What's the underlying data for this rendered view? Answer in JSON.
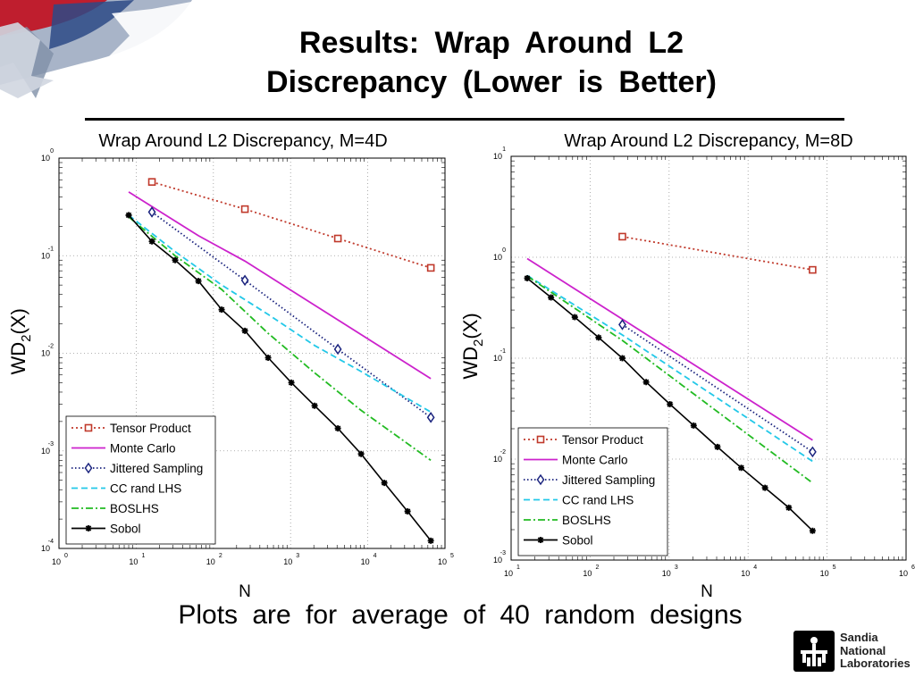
{
  "slide": {
    "title_line1": "Results:  Wrap  Around  L2",
    "title_line2": "Discrepancy  (Lower  is  Better)",
    "footer": "Plots  are  for  average  of  40  random  designs",
    "logo": {
      "line1": "Sandia",
      "line2": "National",
      "line3": "Laboratories"
    }
  },
  "chart_data": [
    {
      "type": "line",
      "title": "Wrap Around L2 Discrepancy, M=4D",
      "xlabel": "N",
      "ylabel": "WD2(X)",
      "xscale": "log",
      "yscale": "log",
      "xlim": [
        1,
        100000
      ],
      "ylim": [
        0.0001,
        1
      ],
      "grid": true,
      "legend_position": "bottom-left",
      "x_ticks": [
        {
          "base": "10",
          "exp": "0"
        },
        {
          "base": "10",
          "exp": "1"
        },
        {
          "base": "10",
          "exp": "2"
        },
        {
          "base": "10",
          "exp": "3"
        },
        {
          "base": "10",
          "exp": "4"
        },
        {
          "base": "10",
          "exp": "5"
        }
      ],
      "y_ticks": [
        {
          "base": "10",
          "exp": "-4"
        },
        {
          "base": "10",
          "exp": "-3"
        },
        {
          "base": "10",
          "exp": "-2"
        },
        {
          "base": "10",
          "exp": "-1"
        },
        {
          "base": "10",
          "exp": "0"
        }
      ],
      "series": [
        {
          "name": "Tensor Product",
          "color": "#c0392b",
          "dash": "2,3",
          "marker": "square",
          "x": [
            16,
            256,
            4096,
            65536
          ],
          "y": [
            0.57,
            0.3,
            0.15,
            0.075
          ]
        },
        {
          "name": "Monte Carlo",
          "color": "#cc22cc",
          "dash": "",
          "marker": "none",
          "x": [
            8,
            64,
            256,
            1024,
            4096,
            65536
          ],
          "y": [
            0.45,
            0.16,
            0.088,
            0.044,
            0.022,
            0.0055
          ]
        },
        {
          "name": "Jittered Sampling",
          "color": "#1a237e",
          "dash": "1.5,2.5",
          "marker": "diamond",
          "x": [
            16,
            256,
            4096,
            65536
          ],
          "y": [
            0.28,
            0.056,
            0.011,
            0.0022
          ]
        },
        {
          "name": "CC rand LHS",
          "color": "#22c8e8",
          "dash": "7,4",
          "marker": "none",
          "x": [
            8,
            32,
            128,
            512,
            2048,
            8192,
            65536
          ],
          "y": [
            0.26,
            0.11,
            0.05,
            0.025,
            0.012,
            0.0065,
            0.0025
          ]
        },
        {
          "name": "BOSLHS",
          "color": "#22bb22",
          "dash": "8,3,2,3",
          "marker": "none",
          "x": [
            8,
            32,
            128,
            512,
            2048,
            8192,
            65536
          ],
          "y": [
            0.25,
            0.1,
            0.045,
            0.016,
            0.0063,
            0.0026,
            0.0008
          ]
        },
        {
          "name": "Sobol",
          "color": "#000000",
          "dash": "",
          "marker": "star",
          "x": [
            8,
            16,
            32,
            64,
            128,
            256,
            512,
            1024,
            2048,
            4096,
            8192,
            16384,
            32768,
            65536
          ],
          "y": [
            0.26,
            0.14,
            0.09,
            0.055,
            0.028,
            0.017,
            0.009,
            0.005,
            0.0029,
            0.0017,
            0.00093,
            0.00047,
            0.00024,
            0.00012
          ]
        }
      ]
    },
    {
      "type": "line",
      "title": "Wrap Around L2 Discrepancy, M=8D",
      "xlabel": "N",
      "ylabel": "WD2(X)",
      "xscale": "log",
      "yscale": "log",
      "xlim": [
        10,
        1000000
      ],
      "ylim": [
        0.001,
        10
      ],
      "grid": true,
      "legend_position": "bottom-left",
      "x_ticks": [
        {
          "base": "10",
          "exp": "1"
        },
        {
          "base": "10",
          "exp": "2"
        },
        {
          "base": "10",
          "exp": "3"
        },
        {
          "base": "10",
          "exp": "4"
        },
        {
          "base": "10",
          "exp": "5"
        },
        {
          "base": "10",
          "exp": "6"
        }
      ],
      "y_ticks": [
        {
          "base": "10",
          "exp": "-3"
        },
        {
          "base": "10",
          "exp": "-2"
        },
        {
          "base": "10",
          "exp": "-1"
        },
        {
          "base": "10",
          "exp": "0"
        },
        {
          "base": "10",
          "exp": "1"
        }
      ],
      "series": [
        {
          "name": "Tensor Product",
          "color": "#c0392b",
          "dash": "2,3",
          "marker": "square",
          "x": [
            256,
            65536
          ],
          "y": [
            1.6,
            0.75
          ]
        },
        {
          "name": "Monte Carlo",
          "color": "#cc22cc",
          "dash": "",
          "marker": "none",
          "x": [
            16,
            65536
          ],
          "y": [
            0.97,
            0.0154
          ]
        },
        {
          "name": "Jittered Sampling",
          "color": "#1a237e",
          "dash": "1.5,2.5",
          "marker": "diamond",
          "x": [
            256,
            65536
          ],
          "y": [
            0.215,
            0.0118
          ]
        },
        {
          "name": "CC rand LHS",
          "color": "#22c8e8",
          "dash": "7,4",
          "marker": "none",
          "x": [
            16,
            256,
            65536
          ],
          "y": [
            0.66,
            0.17,
            0.0095
          ]
        },
        {
          "name": "BOSLHS",
          "color": "#22bb22",
          "dash": "8,3,2,3",
          "marker": "none",
          "x": [
            16,
            256,
            65536
          ],
          "y": [
            0.65,
            0.15,
            0.0058
          ]
        },
        {
          "name": "Sobol",
          "color": "#000000",
          "dash": "",
          "marker": "star",
          "x": [
            16,
            32,
            64,
            128,
            256,
            512,
            1024,
            2048,
            4096,
            8192,
            16384,
            32768,
            65536
          ],
          "y": [
            0.62,
            0.4,
            0.255,
            0.16,
            0.1,
            0.058,
            0.035,
            0.0215,
            0.0132,
            0.0082,
            0.0052,
            0.0033,
            0.00195
          ]
        }
      ]
    }
  ]
}
